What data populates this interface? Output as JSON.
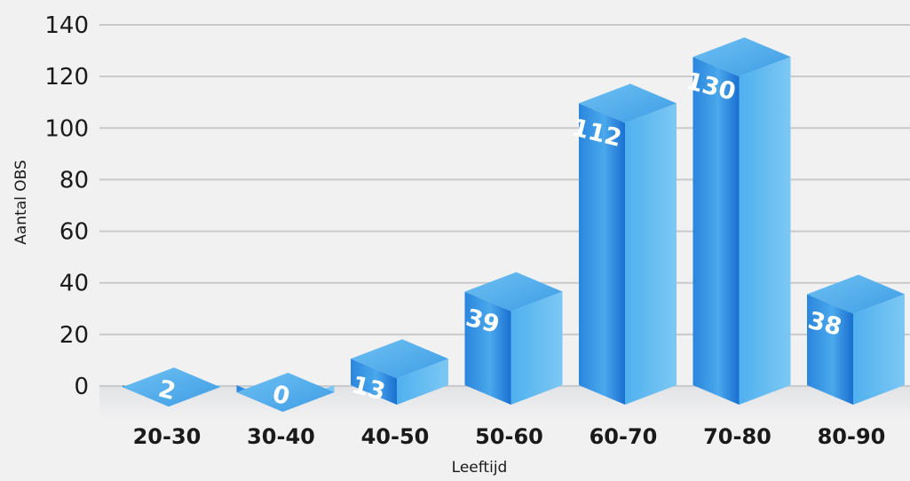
{
  "chart_data": {
    "type": "bar",
    "title": "",
    "xlabel": "Leeftijd",
    "ylabel": "Aantal OBS",
    "categories": [
      "20-30",
      "30-40",
      "40-50",
      "50-60",
      "60-70",
      "70-80",
      "80-90"
    ],
    "values": [
      2,
      0,
      13,
      39,
      112,
      130,
      38
    ],
    "ylim": [
      0,
      140
    ],
    "yticks": [
      0,
      20,
      40,
      60,
      80,
      100,
      120,
      140
    ],
    "grid": true,
    "legend": "none",
    "colors": {
      "bar_front_top": "#5fb6ec",
      "bar_front_bottom": "#1466c8",
      "bar_side": "#0d56b3",
      "bar_top": "#8fd0f5",
      "background": "#f1f1f2",
      "grid": "#c9cacc"
    }
  }
}
